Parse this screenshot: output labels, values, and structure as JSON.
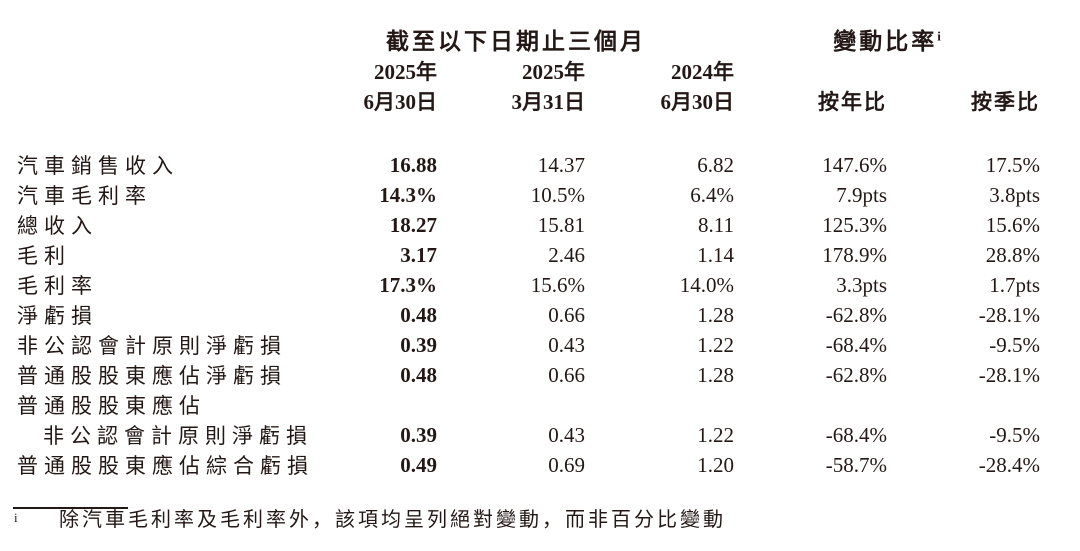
{
  "colors": {
    "text": "#231815",
    "background": "#ffffff"
  },
  "table": {
    "group_headers": [
      {
        "label": "截至以下日期止三個月",
        "sup": ""
      },
      {
        "label": "變動比率",
        "sup": "i"
      }
    ],
    "columns": [
      {
        "year": "2025年",
        "date": "6月30日"
      },
      {
        "year": "2025年",
        "date": "3月31日"
      },
      {
        "year": "2024年",
        "date": "6月30日"
      },
      {
        "year": "",
        "date": "按年比"
      },
      {
        "year": "",
        "date": "按季比"
      }
    ],
    "rows": [
      {
        "label": "汽車銷售收入",
        "values": [
          "16.88",
          "14.37",
          "6.82",
          "147.6%",
          "17.5%"
        ]
      },
      {
        "label": "汽車毛利率",
        "values": [
          "14.3%",
          "10.5%",
          "6.4%",
          "7.9pts",
          "3.8pts"
        ]
      },
      {
        "label": "總收入",
        "values": [
          "18.27",
          "15.81",
          "8.11",
          "125.3%",
          "15.6%"
        ]
      },
      {
        "label": "毛利",
        "values": [
          "3.17",
          "2.46",
          "1.14",
          "178.9%",
          "28.8%"
        ]
      },
      {
        "label": "毛利率",
        "values": [
          "17.3%",
          "15.6%",
          "14.0%",
          "3.3pts",
          "1.7pts"
        ]
      },
      {
        "label": "淨虧損",
        "values": [
          "0.48",
          "0.66",
          "1.28",
          "-62.8%",
          "-28.1%"
        ]
      },
      {
        "label": "非公認會計原則淨虧損",
        "values": [
          "0.39",
          "0.43",
          "1.22",
          "-68.4%",
          "-9.5%"
        ]
      },
      {
        "label": "普通股股東應佔淨虧損",
        "values": [
          "0.48",
          "0.66",
          "1.28",
          "-62.8%",
          "-28.1%"
        ]
      },
      {
        "label": "普通股股東應佔",
        "values": [
          "",
          "",
          "",
          "",
          ""
        ]
      },
      {
        "label": "非公認會計原則淨虧損",
        "indent": true,
        "values": [
          "0.39",
          "0.43",
          "1.22",
          "-68.4%",
          "-9.5%"
        ]
      },
      {
        "label": "普通股股東應佔綜合虧損",
        "values": [
          "0.49",
          "0.69",
          "1.20",
          "-58.7%",
          "-28.4%"
        ]
      }
    ]
  },
  "footnote": {
    "marker": "i",
    "text": "除汽車毛利率及毛利率外，該項均呈列絕對變動，而非百分比變動"
  }
}
